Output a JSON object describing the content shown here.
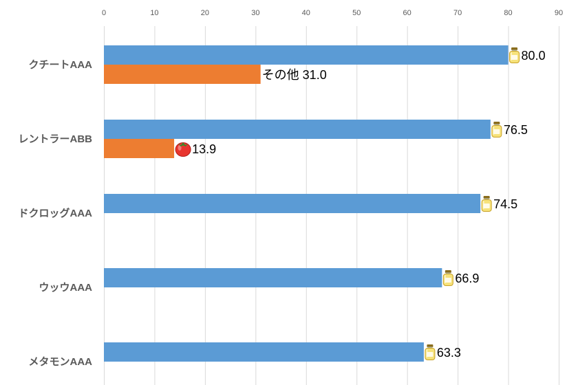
{
  "chart_data": {
    "type": "bar",
    "orientation": "horizontal",
    "title": "",
    "xlabel": "",
    "ylabel": "",
    "xlim": [
      0,
      90
    ],
    "ticks": [
      0,
      10,
      20,
      30,
      40,
      50,
      60,
      70,
      80,
      90
    ],
    "grid": true,
    "categories": [
      "クチートAAA",
      "レントラーABB",
      "ドクロッグAAA",
      "ウッウAAA",
      "メタモンAAA"
    ],
    "series": [
      {
        "name": "primary",
        "color": "#5b9bd5",
        "values": [
          80.0,
          76.5,
          74.5,
          66.9,
          63.3
        ],
        "labels": [
          "80.0",
          "76.5",
          "74.5",
          "66.9",
          "63.3"
        ],
        "label_icon": "honey-jar-icon"
      },
      {
        "name": "secondary",
        "color": "#ed7d31",
        "values": [
          31.0,
          13.9,
          null,
          null,
          null
        ],
        "labels": [
          "その他 31.0",
          "13.9",
          null,
          null,
          null
        ],
        "label_icons": [
          null,
          "tomato-icon",
          null,
          null,
          null
        ]
      }
    ]
  }
}
